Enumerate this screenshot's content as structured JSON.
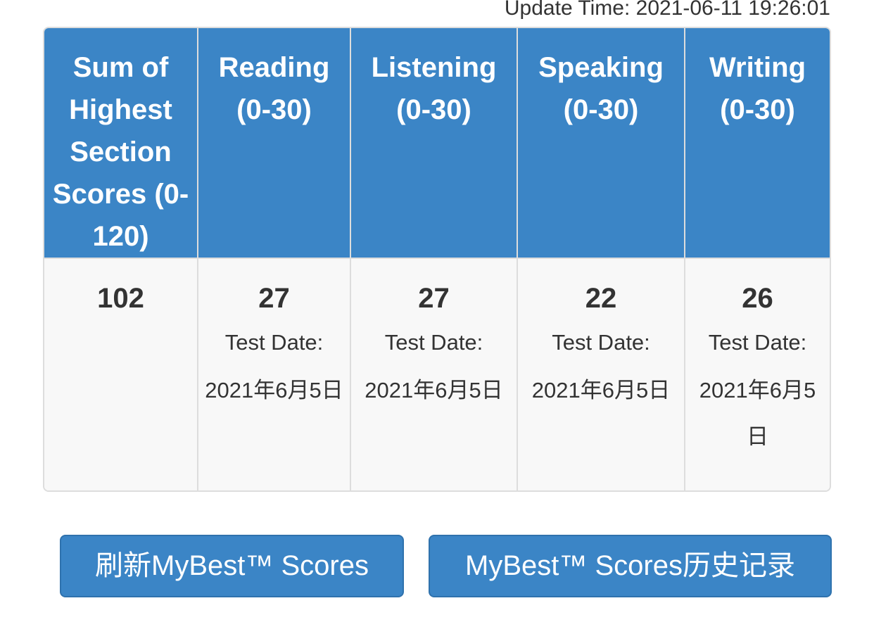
{
  "update_time": "Update Time: 2021-06-11 19:26:01",
  "table": {
    "headers": [
      "Sum of Highest Section Scores (0-120)",
      "Reading (0-30)",
      "Listening (0-30)",
      "Speaking (0-30)",
      "Writing (0-30)"
    ],
    "total_score": "102",
    "sections": [
      {
        "score": "27",
        "date_label": "Test Date:",
        "date": "2021年6月5日"
      },
      {
        "score": "27",
        "date_label": "Test Date:",
        "date": "2021年6月5日"
      },
      {
        "score": "22",
        "date_label": "Test Date:",
        "date": "2021年6月5日"
      },
      {
        "score": "26",
        "date_label": "Test Date:",
        "date": "2021年6月5日"
      }
    ]
  },
  "buttons": {
    "refresh_label": "刷新MyBest™ Scores",
    "history_label": "MyBest™ Scores历史记录"
  },
  "colors": {
    "header_bg": "#3b85c6",
    "button_bg": "#3b85c6",
    "cell_bg": "#f8f8f8",
    "border": "#dddddd"
  }
}
